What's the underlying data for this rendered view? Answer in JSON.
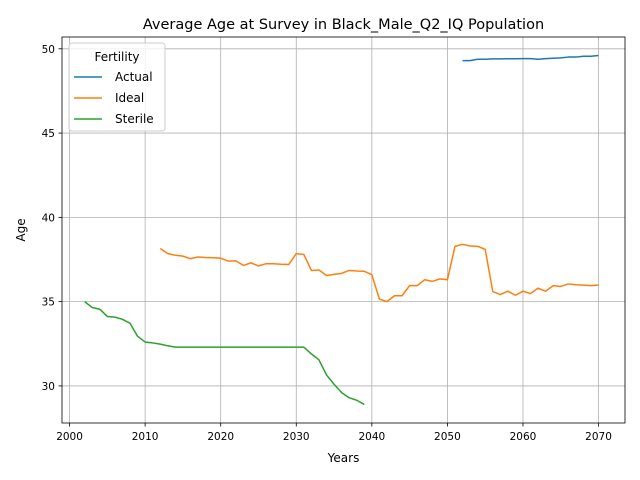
{
  "chart_data": {
    "type": "line",
    "title": "Average Age at Survey in Black_Male_Q2_IQ Population",
    "xlabel": "Years",
    "ylabel": "Age",
    "xlim": [
      1999,
      2073.5
    ],
    "ylim": [
      27.8,
      50.7
    ],
    "xticks": [
      2000,
      2010,
      2020,
      2030,
      2040,
      2050,
      2060,
      2070
    ],
    "yticks": [
      30,
      35,
      40,
      45,
      50
    ],
    "grid": true,
    "legend": {
      "title": "Fertility",
      "position": "upper-left"
    },
    "series": [
      {
        "name": "Actual",
        "color": "#1f77b4",
        "x": [
          2052,
          2053,
          2054,
          2055,
          2056,
          2057,
          2058,
          2059,
          2060,
          2061,
          2062,
          2063,
          2064,
          2065,
          2066,
          2067,
          2068,
          2069,
          2070
        ],
        "y": [
          49.3,
          49.3,
          49.38,
          49.38,
          49.4,
          49.4,
          49.41,
          49.41,
          49.42,
          49.42,
          49.38,
          49.42,
          49.44,
          49.46,
          49.51,
          49.51,
          49.56,
          49.56,
          49.6
        ]
      },
      {
        "name": "Ideal",
        "color": "#ff7f0e",
        "x": [
          2012,
          2013,
          2014,
          2015,
          2016,
          2017,
          2018,
          2019,
          2020,
          2021,
          2022,
          2023,
          2024,
          2025,
          2026,
          2027,
          2028,
          2029,
          2030,
          2031,
          2032,
          2033,
          2034,
          2035,
          2036,
          2037,
          2038,
          2039,
          2040,
          2041,
          2042,
          2043,
          2044,
          2045,
          2046,
          2047,
          2048,
          2049,
          2050,
          2051,
          2052,
          2053,
          2054,
          2055,
          2056,
          2057,
          2058,
          2059,
          2060,
          2061,
          2062,
          2063,
          2064,
          2065,
          2066,
          2067,
          2068,
          2069,
          2070
        ],
        "y": [
          38.15,
          37.85,
          37.75,
          37.7,
          37.55,
          37.65,
          37.62,
          37.6,
          37.58,
          37.4,
          37.42,
          37.15,
          37.3,
          37.12,
          37.25,
          37.25,
          37.22,
          37.2,
          37.85,
          37.8,
          36.85,
          36.88,
          36.55,
          36.62,
          36.68,
          36.85,
          36.82,
          36.8,
          36.6,
          35.15,
          35.0,
          35.35,
          35.35,
          35.95,
          35.95,
          36.3,
          36.2,
          36.35,
          36.3,
          38.28,
          38.4,
          38.3,
          38.28,
          38.1,
          35.6,
          35.42,
          35.62,
          35.38,
          35.62,
          35.48,
          35.8,
          35.62,
          35.95,
          35.9,
          36.05,
          36.0,
          35.98,
          35.95,
          35.98
        ]
      },
      {
        "name": "Sterile",
        "color": "#2ca02c",
        "x": [
          2002,
          2003,
          2004,
          2005,
          2006,
          2007,
          2008,
          2009,
          2010,
          2011,
          2012,
          2013,
          2014,
          2015,
          2016,
          2017,
          2018,
          2019,
          2020,
          2021,
          2022,
          2023,
          2024,
          2025,
          2026,
          2027,
          2028,
          2029,
          2030,
          2031,
          2032,
          2033,
          2034,
          2035,
          2036,
          2037,
          2038,
          2039
        ],
        "y": [
          35.0,
          34.65,
          34.55,
          34.12,
          34.08,
          33.95,
          33.72,
          32.95,
          32.6,
          32.55,
          32.48,
          32.38,
          32.3,
          32.3,
          32.3,
          32.3,
          32.3,
          32.3,
          32.3,
          32.3,
          32.3,
          32.3,
          32.3,
          32.3,
          32.3,
          32.3,
          32.3,
          32.3,
          32.3,
          32.3,
          31.9,
          31.55,
          30.65,
          30.1,
          29.6,
          29.3,
          29.15,
          28.9
        ]
      }
    ]
  }
}
